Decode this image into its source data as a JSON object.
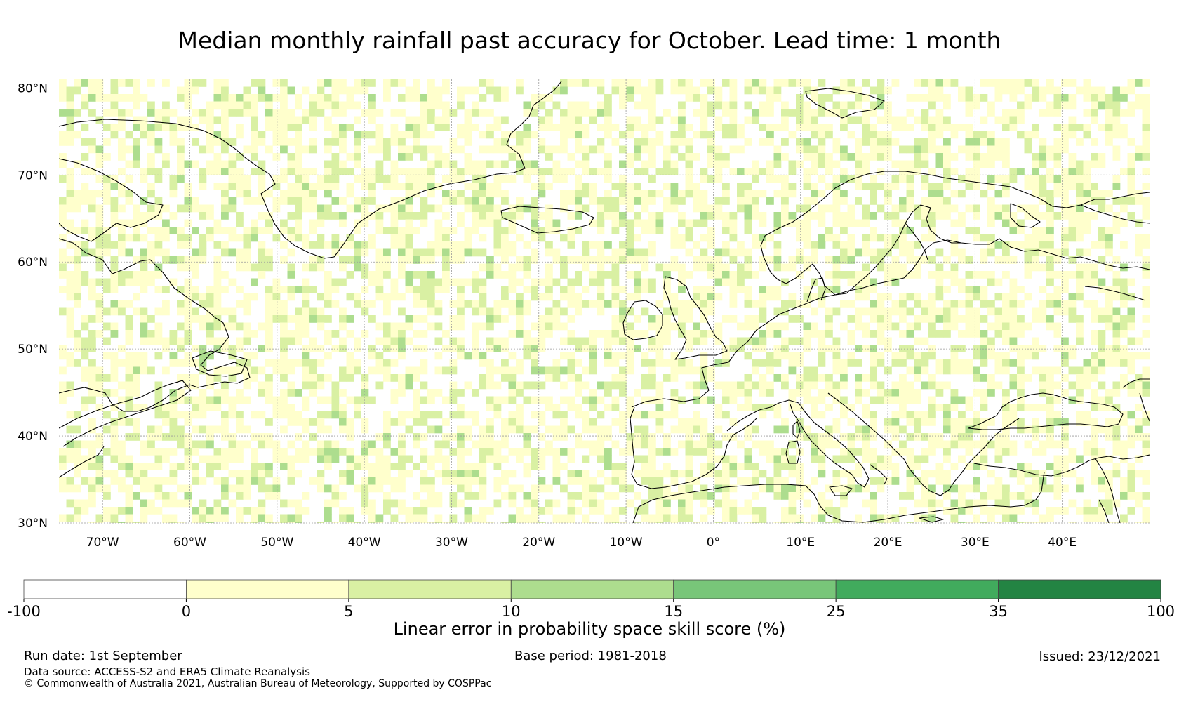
{
  "title": "Median monthly rainfall past accuracy for October. Lead time: 1 month",
  "map": {
    "lon_range": [
      -75,
      50
    ],
    "lat_range": [
      30,
      81
    ],
    "lon_ticks": [
      {
        "value": -70,
        "label": "70°W"
      },
      {
        "value": -60,
        "label": "60°W"
      },
      {
        "value": -50,
        "label": "50°W"
      },
      {
        "value": -40,
        "label": "40°W"
      },
      {
        "value": -30,
        "label": "30°W"
      },
      {
        "value": -20,
        "label": "20°W"
      },
      {
        "value": -10,
        "label": "10°W"
      },
      {
        "value": 0,
        "label": "0°"
      },
      {
        "value": 10,
        "label": "10°E"
      },
      {
        "value": 20,
        "label": "20°E"
      },
      {
        "value": 30,
        "label": "30°E"
      },
      {
        "value": 40,
        "label": "40°E"
      }
    ],
    "lat_ticks": [
      {
        "value": 80,
        "label": "80°N"
      },
      {
        "value": 70,
        "label": "70°N"
      },
      {
        "value": 60,
        "label": "60°N"
      },
      {
        "value": 50,
        "label": "50°N"
      },
      {
        "value": 40,
        "label": "40°N"
      },
      {
        "value": 30,
        "label": "30°N"
      }
    ],
    "coastline_color": "#000000",
    "gridline_color": "#9a9a9a"
  },
  "colorbar": {
    "bins": [
      {
        "from": -100,
        "to": 0,
        "color": "#ffffff"
      },
      {
        "from": 0,
        "to": 5,
        "color": "#ffffcc"
      },
      {
        "from": 5,
        "to": 10,
        "color": "#d9f0a3"
      },
      {
        "from": 10,
        "to": 15,
        "color": "#addd8e"
      },
      {
        "from": 15,
        "to": 25,
        "color": "#78c679"
      },
      {
        "from": 25,
        "to": 35,
        "color": "#41ab5d"
      },
      {
        "from": 35,
        "to": 100,
        "color": "#238443"
      }
    ],
    "tick_labels": [
      "-100",
      "0",
      "5",
      "10",
      "15",
      "25",
      "35",
      "100"
    ],
    "label": "Linear error in probability space skill score (%)"
  },
  "footer": {
    "run_date": "Run date: 1st September",
    "base_period": "Base period: 1981-2018",
    "issued": "Issued: 23/12/2021",
    "data_source": "Data source: ACCESS-S2 and ERA5 Climate Reanalysis",
    "copyright": "© Commonwealth of Australia 2021, Australian Bureau of Meteorology, Supported by COSPPac"
  }
}
